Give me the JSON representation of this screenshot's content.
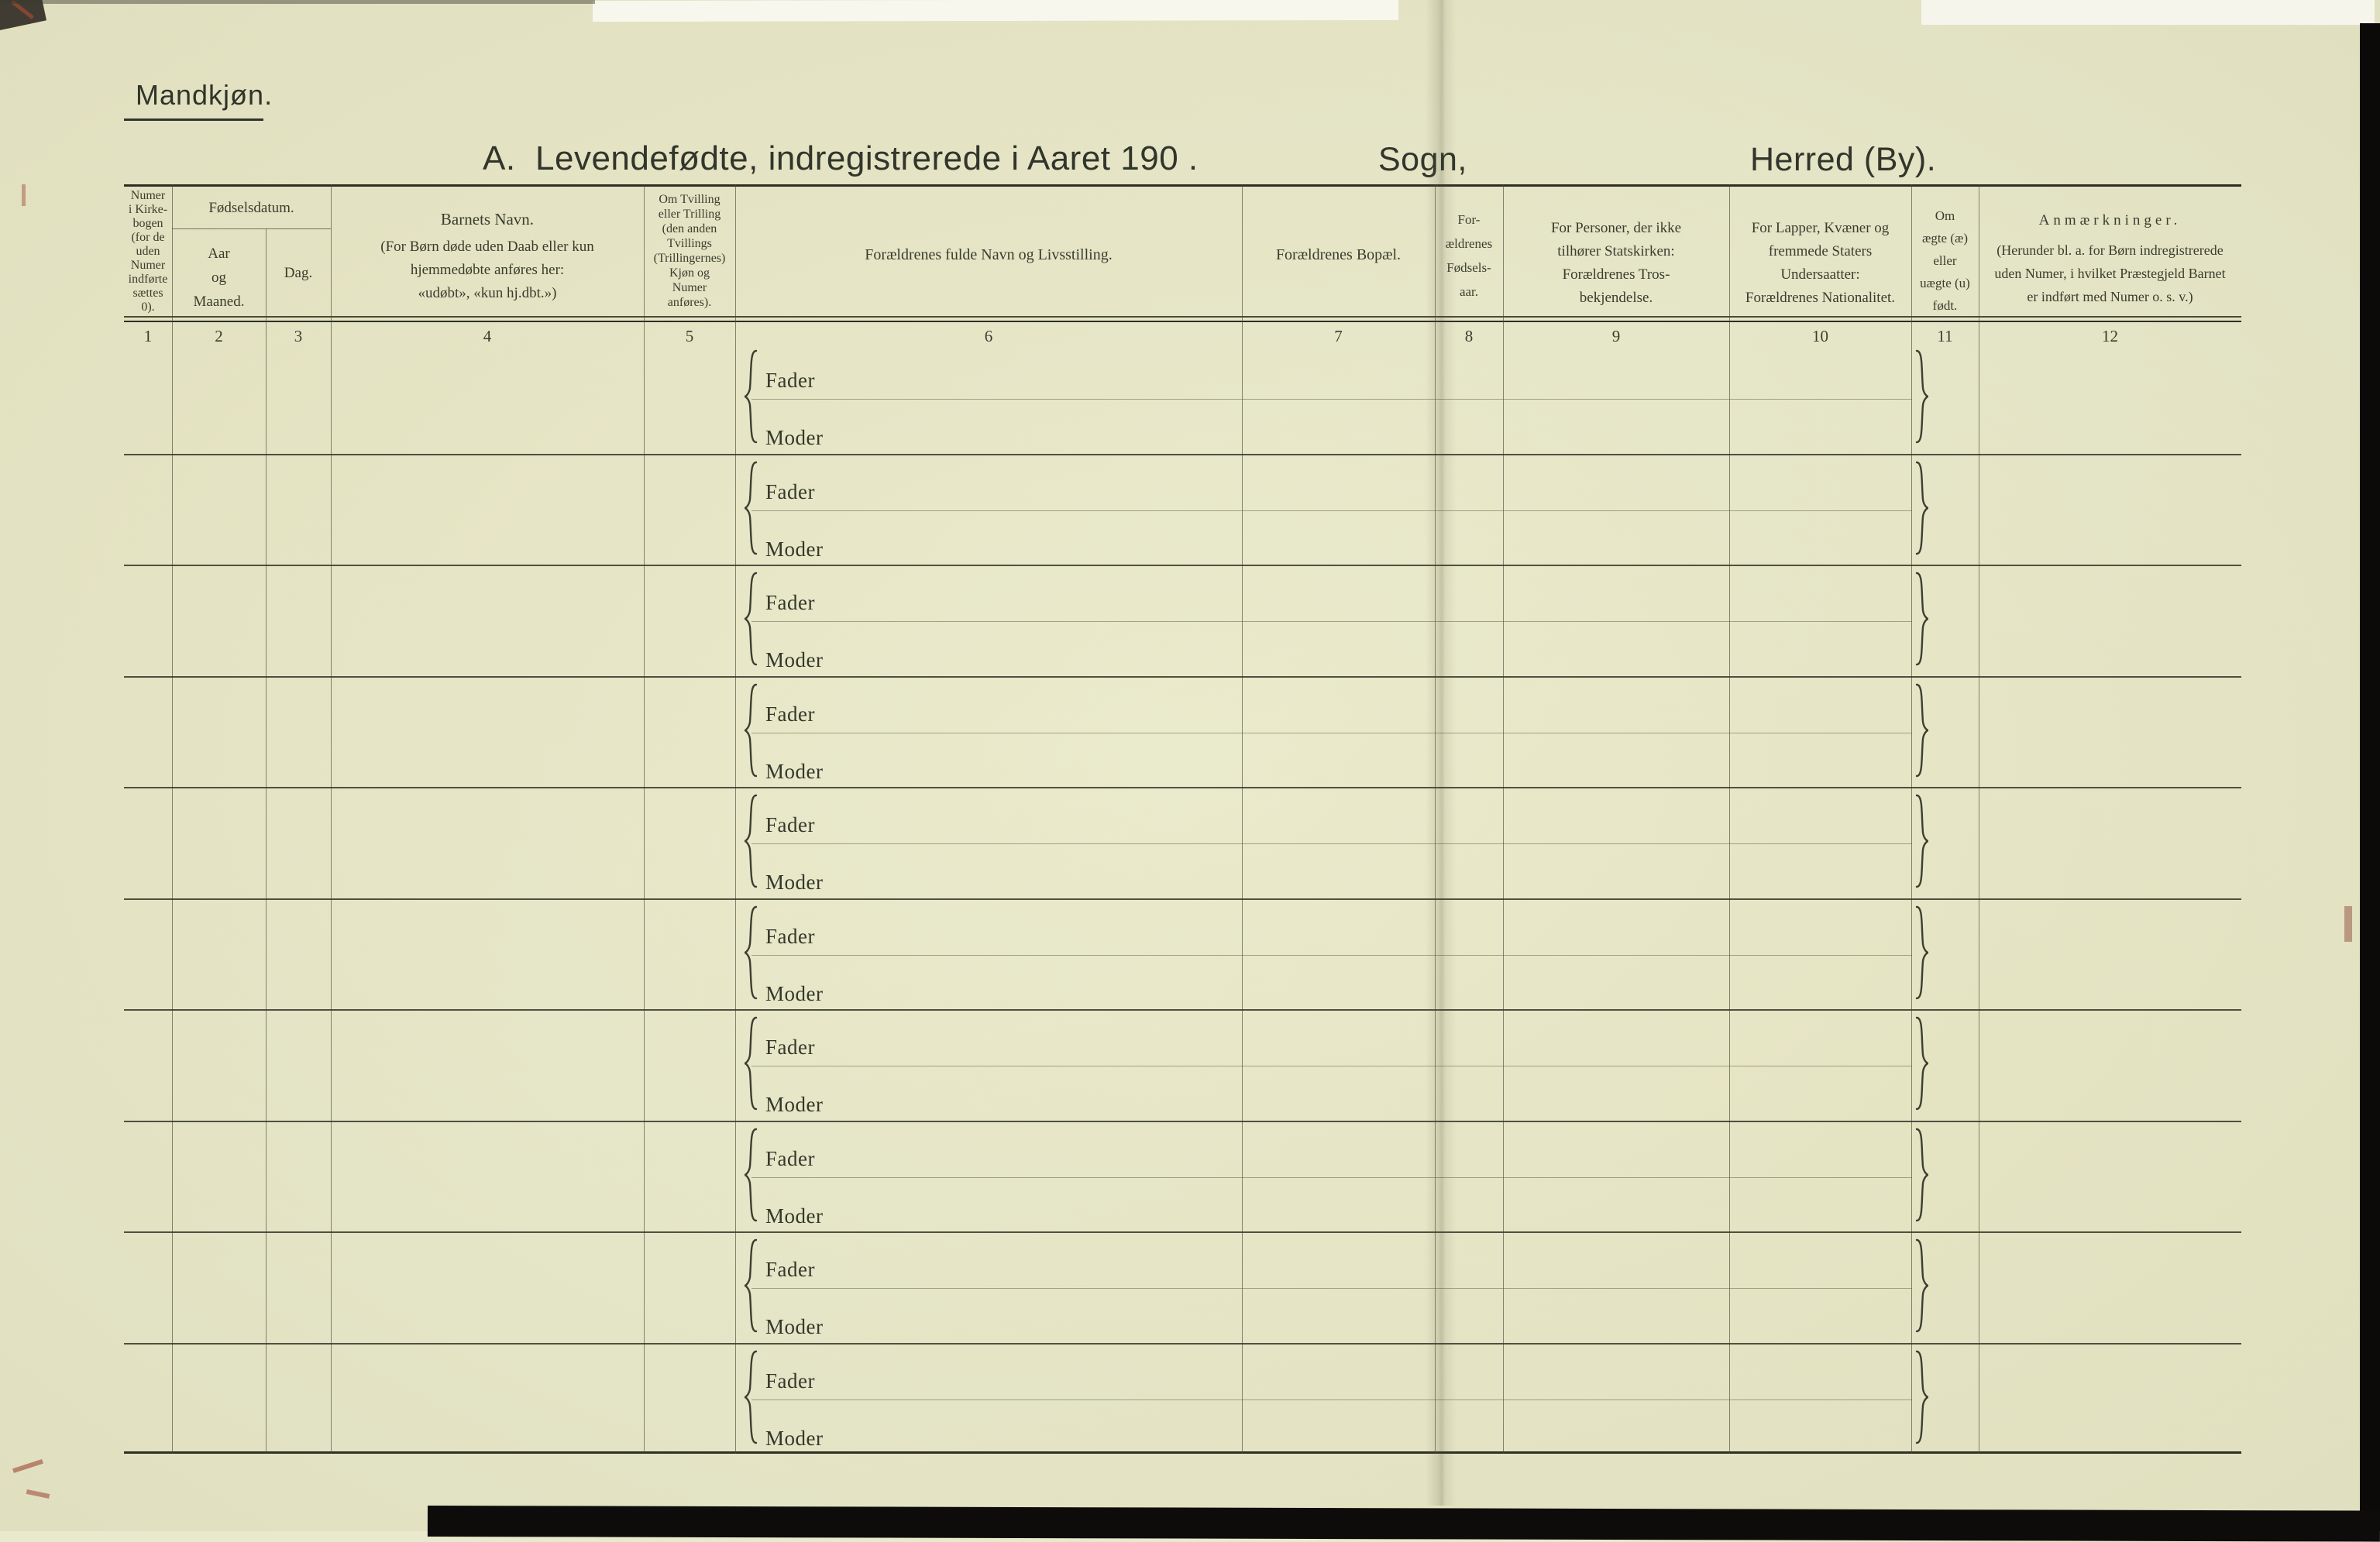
{
  "page": {
    "side_label": "Mandkjøn.",
    "title": "A.  Levendefødte, indregistrerede i Aaret 190 .",
    "sogn_label": "Sogn,",
    "herred_label": "Herred (By)."
  },
  "table": {
    "column_numbers": [
      "1",
      "2",
      "3",
      "4",
      "5",
      "6",
      "7",
      "8",
      "9",
      "10",
      "11",
      "12"
    ],
    "headers": {
      "church_book_number": "Numer\ni Kirke-\nbogen\n(for de\nuden\nNumer\nindførte\nsættes\n0).",
      "birth_date_group": "Fødselsdatum.",
      "birth_year_month": "Aar\nog\nMaaned.",
      "birth_day": "Dag.",
      "child_name_title": "Barnets Navn.",
      "child_name_note": "(For Børn døde uden Daab eller kun\nhjemmedøbte anføres her:\n«udøbt», «kun hj.dbt.»)",
      "twin_note": "Om Tvilling\neller Trilling\n(den anden\nTvillings\n(Trillingernes)\nKjøn og\nNumer\nanføres).",
      "parents_name": "Forældrenes fulde Navn og Livsstilling.",
      "parents_residence": "Forældrenes Bopæl.",
      "parents_birth_year": "For-\nældrenes\nFødsels-\naar.",
      "parents_religion": "For Personer, der ikke\ntilhører Statskirken:\nForældrenes Tros-\nbekjendelse.",
      "parents_nationality": "For Lapper, Kvæner og\nfremmede Staters\nUndersaatter:\nForældrenes Nationalitet.",
      "legitimacy": "Om\nægte (æ)\neller\nuægte (u)\nfødt.",
      "remarks_title": "Anmærkninger.",
      "remarks_note": "(Herunder bl. a. for Børn indregistrerede\nuden Numer, i hvilket Præstegjeld Barnet\ner indført med Numer o. s. v.)"
    },
    "row_labels": {
      "father": "Fader",
      "mother": "Moder"
    },
    "row_count": 10
  },
  "colors": {
    "paper": "#e9eacd",
    "ink": "#373a2b",
    "rule": "#2d2f23"
  }
}
